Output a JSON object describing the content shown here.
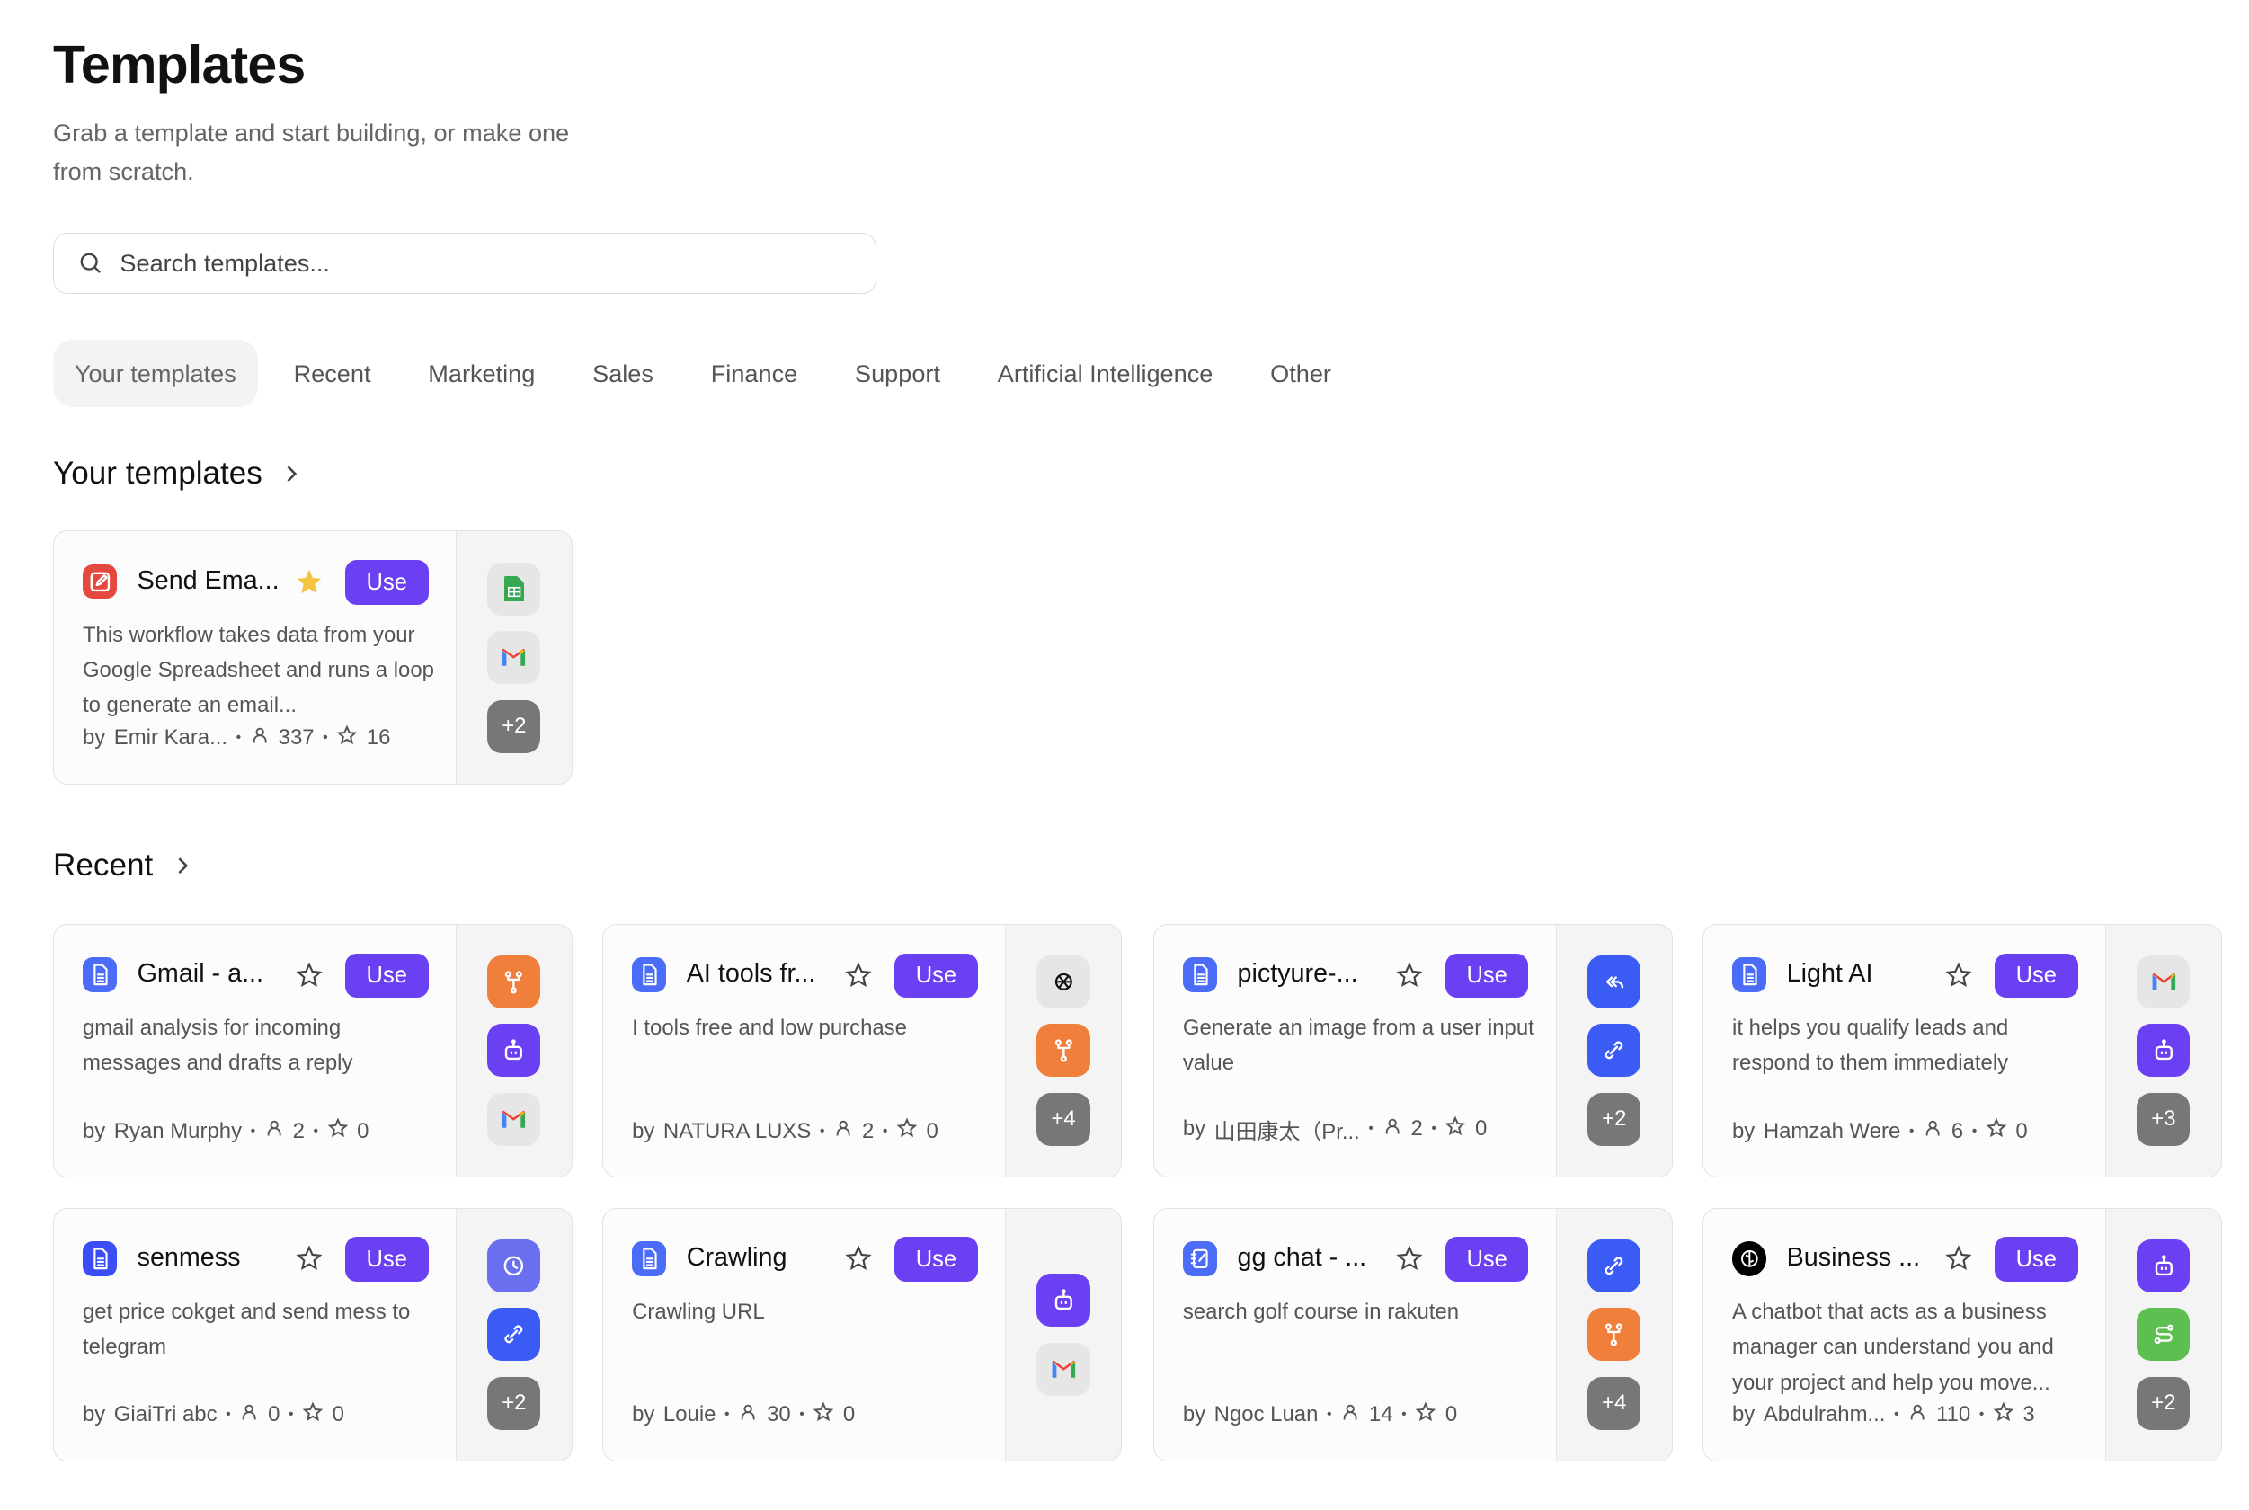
{
  "header": {
    "title": "Templates",
    "subtitle": "Grab a template and start building, or make one from scratch."
  },
  "search": {
    "placeholder": "Search templates..."
  },
  "tabs": [
    {
      "label": "Your templates",
      "active": true
    },
    {
      "label": "Recent"
    },
    {
      "label": "Marketing"
    },
    {
      "label": "Sales"
    },
    {
      "label": "Finance"
    },
    {
      "label": "Support"
    },
    {
      "label": "Artificial Intelligence"
    },
    {
      "label": "Other"
    }
  ],
  "colors": {
    "accent": "#6b3ff2",
    "blue": "#4a6cf7",
    "orange": "#f07f3c",
    "purple": "#6b3ff2",
    "green": "#5cbf4f",
    "gray": "#777777"
  },
  "use_label": "Use",
  "by_label": "by",
  "sections": [
    {
      "title": "Your templates",
      "cards": [
        {
          "title": "Send Ema...",
          "starred": true,
          "description": "This workflow takes data from your Google Spreadsheet and runs a loop to generate an email...",
          "author": "Emir Kara...",
          "users": "337",
          "stars": "16",
          "icon": "edit-icon",
          "icon_color": "#e5483f",
          "integrations": [
            {
              "icon": "google-sheets-icon",
              "color": "#e6e6e6"
            },
            {
              "icon": "gmail-icon",
              "color": "#e6e6e6"
            },
            {
              "text": "+2",
              "color": "#777777"
            }
          ]
        }
      ]
    },
    {
      "title": "Recent",
      "cards": [
        {
          "title": "Gmail - a...",
          "starred": false,
          "description": "gmail analysis for incoming messages and drafts a reply",
          "author": "Ryan Murphy",
          "users": "2",
          "stars": "0",
          "icon": "document-icon",
          "icon_color": "#4a6cf7",
          "integrations": [
            {
              "icon": "branch-icon",
              "color": "#f07f3c"
            },
            {
              "icon": "robot-icon",
              "color": "#6b3ff2"
            },
            {
              "icon": "gmail-icon",
              "color": "#e6e6e6"
            }
          ]
        },
        {
          "title": "AI tools fr...",
          "starred": false,
          "description": "I tools free and low purchase",
          "author": "NATURA LUXS",
          "users": "2",
          "stars": "0",
          "icon": "document-icon",
          "icon_color": "#4a6cf7",
          "integrations": [
            {
              "icon": "openai-icon",
              "color": "#e6e6e6"
            },
            {
              "icon": "branch-icon",
              "color": "#f07f3c"
            },
            {
              "text": "+4",
              "color": "#777777"
            }
          ]
        },
        {
          "title": "pictyure-...",
          "starred": false,
          "description": "Generate an image from a user input value",
          "author": "山田康太（Pr...",
          "users": "2",
          "stars": "0",
          "icon": "document-icon",
          "icon_color": "#4a6cf7",
          "integrations": [
            {
              "icon": "reply-icon",
              "color": "#3b5bf5"
            },
            {
              "icon": "link-icon",
              "color": "#3b5bf5"
            },
            {
              "text": "+2",
              "color": "#777777"
            }
          ]
        },
        {
          "title": "Light AI",
          "starred": false,
          "description": "it helps you qualify leads and respond to them immediately",
          "author": "Hamzah Were",
          "users": "6",
          "stars": "0",
          "icon": "document-icon",
          "icon_color": "#4a6cf7",
          "integrations": [
            {
              "icon": "gmail-icon",
              "color": "#e6e6e6"
            },
            {
              "icon": "robot-icon",
              "color": "#6b3ff2"
            },
            {
              "text": "+3",
              "color": "#777777"
            }
          ]
        },
        {
          "title": "senmess",
          "starred": false,
          "description": "get price cokget and send mess to telegram",
          "author": "GiaiTri abc",
          "users": "0",
          "stars": "0",
          "icon": "document-icon",
          "icon_color": "#3b4ef5",
          "integrations": [
            {
              "icon": "clock-icon",
              "color": "#6a6ff0"
            },
            {
              "icon": "link-icon",
              "color": "#3b5bf5"
            },
            {
              "text": "+2",
              "color": "#777777"
            }
          ]
        },
        {
          "title": "Crawling",
          "starred": false,
          "description": "Crawling URL",
          "author": "Louie",
          "users": "30",
          "stars": "0",
          "icon": "document-icon",
          "icon_color": "#4a6cf7",
          "integrations": [
            {
              "icon": "robot-icon",
              "color": "#6b3ff2"
            },
            {
              "icon": "gmail-icon",
              "color": "#e6e6e6"
            }
          ]
        },
        {
          "title": "gg chat - ...",
          "starred": false,
          "description": "search golf course in rakuten",
          "author": "Ngoc Luan",
          "users": "14",
          "stars": "0",
          "icon": "notebook-icon",
          "icon_color": "#4a6cf7",
          "integrations": [
            {
              "icon": "link-icon",
              "color": "#3b5bf5"
            },
            {
              "icon": "branch-icon",
              "color": "#f07f3c"
            },
            {
              "text": "+4",
              "color": "#777777"
            }
          ]
        },
        {
          "title": "Business ...",
          "starred": false,
          "description": "A chatbot that acts as a business manager can understand you and your project and help you move...",
          "author": "Abdulrahm...",
          "users": "110",
          "stars": "3",
          "icon": "brain-icon",
          "icon_color": "#000000",
          "integrations": [
            {
              "icon": "robot-icon",
              "color": "#6b3ff2"
            },
            {
              "icon": "route-icon",
              "color": "#5cbf4f"
            },
            {
              "text": "+2",
              "color": "#777777"
            }
          ]
        }
      ]
    }
  ]
}
